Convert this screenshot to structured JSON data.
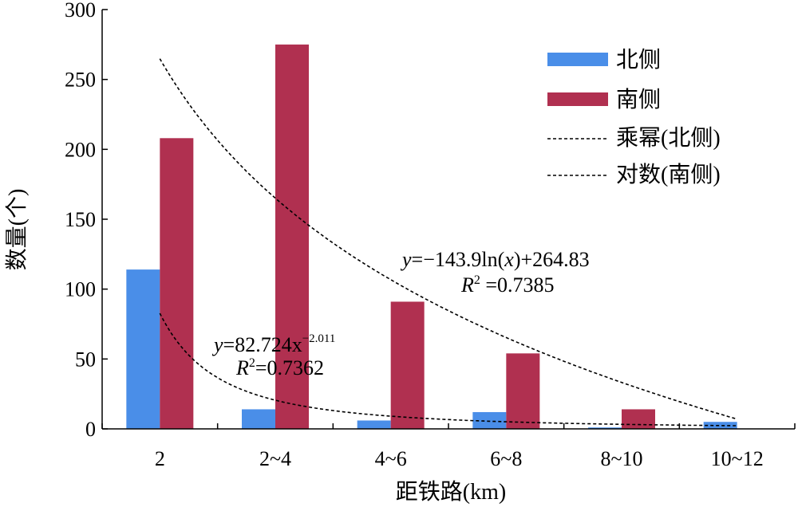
{
  "chart_data": {
    "type": "bar",
    "xlabel": "距铁路(km)",
    "ylabel": "数量(个)",
    "ylim": [
      0,
      300
    ],
    "yticks": [
      0,
      50,
      100,
      150,
      200,
      250,
      300
    ],
    "categories": [
      "2",
      "2~4",
      "4~6",
      "6~8",
      "8~10",
      "10~12"
    ],
    "series": [
      {
        "name": "北侧",
        "color": "#4a8ee8",
        "values": [
          114,
          14,
          6,
          12,
          1,
          5
        ]
      },
      {
        "name": "南侧",
        "color": "#b03050",
        "values": [
          208,
          275,
          91,
          54,
          14,
          0
        ]
      }
    ],
    "trendlines": [
      {
        "name": "乘幂(北侧)",
        "kind": "power",
        "a": 82.724,
        "b": -2.011,
        "style": "dashed"
      },
      {
        "name": "对数(南侧)",
        "kind": "log",
        "a": -143.9,
        "b": 264.83,
        "style": "dashed"
      }
    ],
    "annotations": {
      "power": {
        "line1_y": "y",
        "line1_rest": "=82.724x",
        "line1_sup": "−2.011",
        "line2_r": "R",
        "line2_sup": "2",
        "line2_rest": "=0.7362"
      },
      "log": {
        "line1_y": "y",
        "line1_mid": "=−143.9ln(",
        "line1_x": "x",
        "line1_rest": ")+264.83",
        "line2_r": "R",
        "line2_sup": "2",
        "line2_rest": " =0.7385"
      }
    },
    "legend_position": "top-right",
    "grid": false
  }
}
